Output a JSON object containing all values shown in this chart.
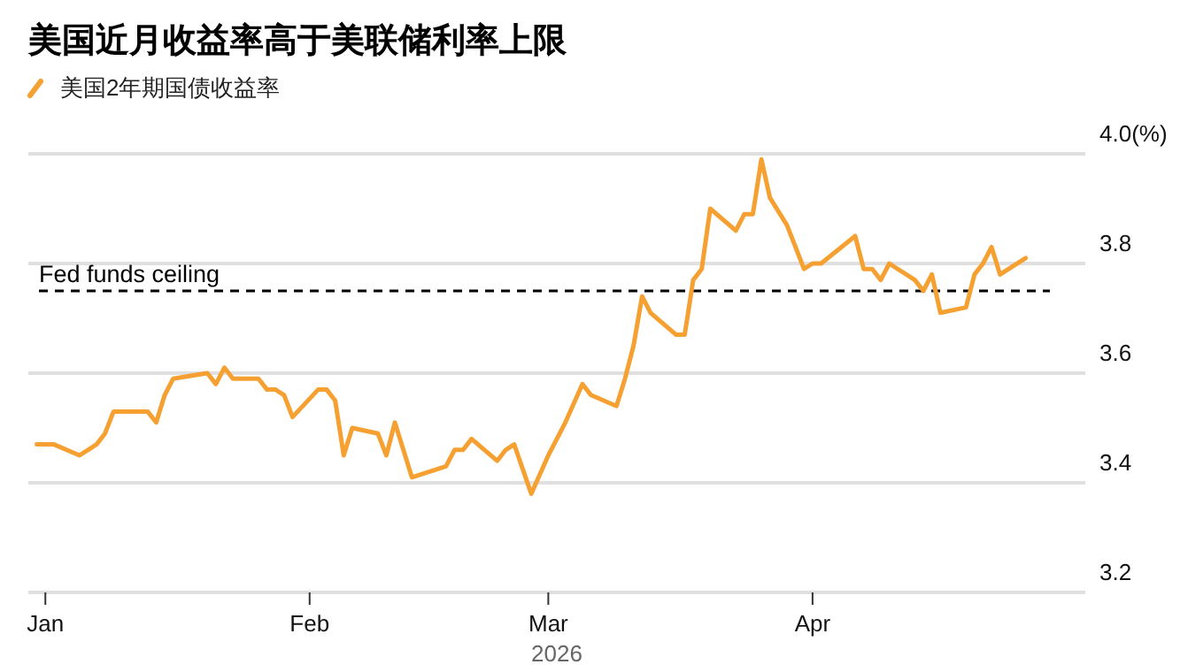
{
  "chart_data": {
    "type": "line",
    "title": "美国近月收益率高于美联储利率上限",
    "xlabel": "2026",
    "x": [
      "2025-12-31",
      "2026-01-02",
      "2026-01-05",
      "2026-01-06",
      "2026-01-07",
      "2026-01-08",
      "2026-01-09",
      "2026-01-12",
      "2026-01-13",
      "2026-01-14",
      "2026-01-15",
      "2026-01-16",
      "2026-01-20",
      "2026-01-21",
      "2026-01-22",
      "2026-01-23",
      "2026-01-26",
      "2026-01-27",
      "2026-01-28",
      "2026-01-29",
      "2026-01-30",
      "2026-02-02",
      "2026-02-03",
      "2026-02-04",
      "2026-02-05",
      "2026-02-06",
      "2026-02-09",
      "2026-02-10",
      "2026-02-11",
      "2026-02-13",
      "2026-02-17",
      "2026-02-18",
      "2026-02-19",
      "2026-02-20",
      "2026-02-23",
      "2026-02-24",
      "2026-02-25",
      "2026-02-27",
      "2026-03-01",
      "2026-03-03",
      "2026-03-05",
      "2026-03-06",
      "2026-03-09",
      "2026-03-10",
      "2026-03-11",
      "2026-03-12",
      "2026-03-13",
      "2026-03-16",
      "2026-03-17",
      "2026-03-18",
      "2026-03-19",
      "2026-03-20",
      "2026-03-23",
      "2026-03-24",
      "2026-03-25",
      "2026-03-26",
      "2026-03-27",
      "2026-03-29",
      "2026-03-30",
      "2026-03-31",
      "2026-04-01",
      "2026-04-02",
      "2026-04-06",
      "2026-04-07",
      "2026-04-08",
      "2026-04-09",
      "2026-04-10",
      "2026-04-13",
      "2026-04-14",
      "2026-04-15",
      "2026-04-16",
      "2026-04-19",
      "2026-04-20",
      "2026-04-21",
      "2026-04-22",
      "2026-04-23",
      "2026-04-26"
    ],
    "series": [
      {
        "name": "美国2年期国债收益率",
        "color": "#f5a030",
        "values": [
          3.47,
          3.47,
          3.45,
          3.46,
          3.47,
          3.49,
          3.53,
          3.53,
          3.53,
          3.51,
          3.56,
          3.59,
          3.6,
          3.58,
          3.61,
          3.59,
          3.59,
          3.57,
          3.57,
          3.56,
          3.52,
          3.57,
          3.57,
          3.55,
          3.45,
          3.5,
          3.49,
          3.45,
          3.51,
          3.41,
          3.43,
          3.46,
          3.46,
          3.48,
          3.44,
          3.46,
          3.47,
          3.38,
          3.45,
          3.51,
          3.58,
          3.56,
          3.54,
          3.59,
          3.65,
          3.74,
          3.71,
          3.67,
          3.67,
          3.77,
          3.79,
          3.9,
          3.86,
          3.89,
          3.89,
          3.99,
          3.92,
          3.87,
          3.83,
          3.79,
          3.8,
          3.8,
          3.85,
          3.79,
          3.79,
          3.77,
          3.8,
          3.77,
          3.75,
          3.78,
          3.71,
          3.72,
          3.78,
          3.8,
          3.83,
          3.78,
          3.81
        ]
      }
    ],
    "xlim": [
      "2025-12-30",
      "2026-05-03"
    ],
    "xticks": [
      {
        "value": "2026-01-01",
        "label": "Jan"
      },
      {
        "value": "2026-02-01",
        "label": "Feb"
      },
      {
        "value": "2026-03-01",
        "label": "Mar"
      },
      {
        "value": "2026-04-01",
        "label": "Apr"
      }
    ],
    "ylim": [
      3.2,
      4.0
    ],
    "yticks": [
      3.2,
      3.4,
      3.6,
      3.8,
      {
        "value": 4.0,
        "label": "4.0(%)"
      }
    ],
    "ref_lines": [
      {
        "axis": "y",
        "value": 3.75,
        "label": "Fed funds ceiling",
        "color": "#000000",
        "line_style": "dashed"
      }
    ],
    "grid": "y",
    "legend": "top left",
    "line_style": "solid"
  }
}
